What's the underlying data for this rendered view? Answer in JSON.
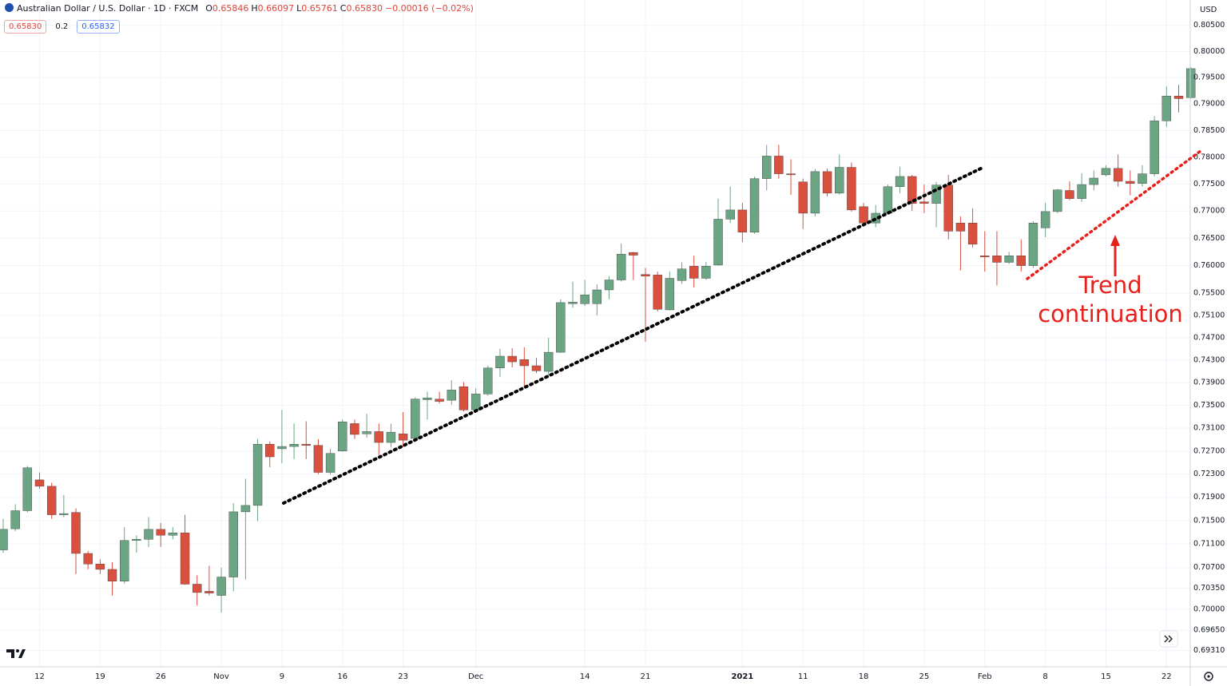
{
  "chart_data": {
    "type": "candlestick",
    "title": "Australian Dollar / U.S. Dollar · 1D · FXCM",
    "readout": [
      [
        "O",
        "0.65846"
      ],
      [
        "H",
        "0.66097"
      ],
      [
        "L",
        "0.65761"
      ],
      [
        "C",
        "0.65830"
      ],
      [
        "",
        "−0.00016 (−0.02%)"
      ]
    ],
    "quote_boxes": [
      "0.65830",
      "0.2",
      "0.65832"
    ],
    "currency": "USD",
    "annotation": [
      "Trend",
      "continuation"
    ],
    "log_scale": true,
    "grid": true,
    "up_color": "#6ba583",
    "down_color": "#d9503f",
    "ylim": [
      0.6904,
      0.8099
    ],
    "yticks": [
      {
        "value": 0.805,
        "label": "0.80500"
      },
      {
        "value": 0.8,
        "label": "0.80000"
      },
      {
        "value": 0.795,
        "label": "0.79500"
      },
      {
        "value": 0.79,
        "label": "0.79000"
      },
      {
        "value": 0.785,
        "label": "0.78500"
      },
      {
        "value": 0.78,
        "label": "0.78000"
      },
      {
        "value": 0.775,
        "label": "0.77500"
      },
      {
        "value": 0.77,
        "label": "0.77000"
      },
      {
        "value": 0.765,
        "label": "0.76500"
      },
      {
        "value": 0.76,
        "label": "0.76000"
      },
      {
        "value": 0.755,
        "label": "0.75500"
      },
      {
        "value": 0.751,
        "label": "0.75100"
      },
      {
        "value": 0.747,
        "label": "0.74700"
      },
      {
        "value": 0.743,
        "label": "0.74300"
      },
      {
        "value": 0.739,
        "label": "0.73900"
      },
      {
        "value": 0.735,
        "label": "0.73500"
      },
      {
        "value": 0.731,
        "label": "0.73100"
      },
      {
        "value": 0.727,
        "label": "0.72700"
      },
      {
        "value": 0.723,
        "label": "0.72300"
      },
      {
        "value": 0.719,
        "label": "0.71900"
      },
      {
        "value": 0.715,
        "label": "0.71500"
      },
      {
        "value": 0.711,
        "label": "0.71100"
      },
      {
        "value": 0.707,
        "label": "0.70700"
      },
      {
        "value": 0.7035,
        "label": "0.70350"
      },
      {
        "value": 0.7,
        "label": "0.70000"
      },
      {
        "value": 0.6965,
        "label": "0.69650"
      },
      {
        "value": 0.6931,
        "label": "0.69310"
      }
    ],
    "categories": [
      null,
      null,
      null,
      "12",
      null,
      null,
      null,
      null,
      "19",
      null,
      null,
      null,
      null,
      "26",
      null,
      null,
      null,
      null,
      "Nov",
      null,
      null,
      null,
      null,
      "9",
      null,
      null,
      null,
      null,
      "16",
      null,
      null,
      null,
      null,
      "23",
      null,
      null,
      null,
      null,
      null,
      "Dec",
      null,
      null,
      null,
      null,
      null,
      null,
      null,
      null,
      "14",
      null,
      null,
      null,
      null,
      "21",
      null,
      null,
      null,
      null,
      null,
      null,
      null,
      "2021",
      null,
      null,
      null,
      null,
      "11",
      null,
      null,
      null,
      null,
      "18",
      null,
      null,
      null,
      null,
      "25",
      null,
      null,
      null,
      null,
      "Feb",
      null,
      null,
      null,
      null,
      "8",
      null,
      null,
      null,
      null,
      "15",
      null,
      null,
      null,
      null,
      "22",
      null,
      null
    ],
    "open": [
      0.71,
      0.7136,
      0.7167,
      0.722,
      0.7209,
      0.716,
      0.7164,
      0.7094,
      0.7076,
      0.7067,
      0.7047,
      0.7116,
      0.7118,
      0.7135,
      0.7125,
      0.7129,
      0.7042,
      0.703,
      0.7023,
      0.7054,
      0.7165,
      0.7176,
      0.7282,
      0.7274,
      0.7278,
      0.7282,
      0.728,
      0.7233,
      0.727,
      0.7318,
      0.73,
      0.7304,
      0.7285,
      0.73,
      0.7292,
      0.736,
      0.7361,
      0.7359,
      0.7383,
      0.7342,
      0.737,
      0.7416,
      0.7437,
      0.7431,
      0.742,
      0.741,
      0.7444,
      0.7531,
      0.7531,
      0.7531,
      0.7556,
      0.7574,
      0.7624,
      0.7584,
      0.7583,
      0.752,
      0.7573,
      0.7599,
      0.7577,
      0.7601,
      0.7685,
      0.7702,
      0.7661,
      0.776,
      0.7802,
      0.7769,
      0.7754,
      0.7696,
      0.7773,
      0.7733,
      0.7781,
      0.7708,
      0.7678,
      0.7696,
      0.7745,
      0.7764,
      0.7717,
      0.7714,
      0.7748,
      0.7678,
      0.7678,
      0.7618,
      0.7618,
      0.7606,
      0.7618,
      0.76,
      0.7669,
      0.7699,
      0.7738,
      0.7723,
      0.7749,
      0.7767,
      0.7779,
      0.7755,
      0.7751,
      0.7769,
      0.7868,
      0.7915,
      0.7912
    ],
    "high": [
      0.7153,
      0.7178,
      0.7244,
      0.7233,
      0.7215,
      0.7194,
      0.7171,
      0.7098,
      0.7084,
      0.7079,
      0.7139,
      0.7125,
      0.7156,
      0.7146,
      0.7139,
      0.716,
      0.7057,
      0.7073,
      0.707,
      0.718,
      0.7222,
      0.7291,
      0.7287,
      0.7342,
      0.7318,
      0.7322,
      0.7291,
      0.7274,
      0.7325,
      0.7325,
      0.7335,
      0.7318,
      0.7318,
      0.7338,
      0.7364,
      0.7374,
      0.7374,
      0.7394,
      0.7391,
      0.738,
      0.742,
      0.745,
      0.7451,
      0.7453,
      0.7434,
      0.747,
      0.7539,
      0.7571,
      0.7574,
      0.7566,
      0.7581,
      0.764,
      0.7625,
      0.7596,
      0.7589,
      0.7589,
      0.7606,
      0.7618,
      0.7607,
      0.7723,
      0.7745,
      0.7715,
      0.7764,
      0.7823,
      0.7823,
      0.7796,
      0.776,
      0.7778,
      0.7779,
      0.7805,
      0.779,
      0.7715,
      0.7711,
      0.7749,
      0.7782,
      0.7767,
      0.7749,
      0.7754,
      0.7767,
      0.769,
      0.7705,
      0.7663,
      0.7663,
      0.7625,
      0.7648,
      0.7681,
      0.7715,
      0.7741,
      0.7755,
      0.777,
      0.7775,
      0.7785,
      0.7805,
      0.7775,
      0.7785,
      0.7877,
      0.7933,
      0.7936,
      0.797
    ],
    "low": [
      0.7095,
      0.7132,
      0.7164,
      0.7205,
      0.7153,
      0.7156,
      0.7059,
      0.7067,
      0.7059,
      0.7023,
      0.7043,
      0.7095,
      0.7105,
      0.7105,
      0.7118,
      0.7041,
      0.7006,
      0.7023,
      0.6994,
      0.703,
      0.705,
      0.7149,
      0.7242,
      0.7249,
      0.7256,
      0.7256,
      0.723,
      0.7229,
      0.7269,
      0.7291,
      0.7293,
      0.7263,
      0.7277,
      0.7277,
      0.7288,
      0.7325,
      0.7353,
      0.7351,
      0.7339,
      0.7339,
      0.7367,
      0.74,
      0.7417,
      0.7381,
      0.7407,
      0.7403,
      0.7443,
      0.7524,
      0.7527,
      0.751,
      0.7539,
      0.7571,
      0.7574,
      0.7463,
      0.7517,
      0.7519,
      0.7567,
      0.756,
      0.7574,
      0.76,
      0.7678,
      0.7643,
      0.7658,
      0.7738,
      0.776,
      0.773,
      0.7667,
      0.769,
      0.7727,
      0.773,
      0.7699,
      0.7673,
      0.767,
      0.7693,
      0.7733,
      0.77,
      0.7696,
      0.767,
      0.7648,
      0.7591,
      0.7633,
      0.7589,
      0.7564,
      0.7603,
      0.7589,
      0.7596,
      0.7652,
      0.7696,
      0.772,
      0.7717,
      0.7738,
      0.7764,
      0.7745,
      0.7729,
      0.7745,
      0.7764,
      0.7857,
      0.7884,
      0.791
    ],
    "close": [
      0.7135,
      0.7167,
      0.7241,
      0.7209,
      0.716,
      0.7162,
      0.7094,
      0.7076,
      0.7067,
      0.7047,
      0.7116,
      0.7118,
      0.7135,
      0.7125,
      0.7129,
      0.7042,
      0.7028,
      0.7027,
      0.7054,
      0.7165,
      0.7176,
      0.7282,
      0.726,
      0.7278,
      0.7282,
      0.728,
      0.7233,
      0.7266,
      0.7321,
      0.7299,
      0.7304,
      0.7285,
      0.7303,
      0.7289,
      0.7361,
      0.7363,
      0.7357,
      0.7377,
      0.7342,
      0.737,
      0.7416,
      0.7437,
      0.7427,
      0.742,
      0.7411,
      0.7444,
      0.7533,
      0.7534,
      0.7547,
      0.7556,
      0.7574,
      0.7621,
      0.7619,
      0.7581,
      0.7521,
      0.7577,
      0.7594,
      0.7577,
      0.7599,
      0.7685,
      0.7702,
      0.7661,
      0.776,
      0.7802,
      0.7769,
      0.7767,
      0.7696,
      0.7773,
      0.7733,
      0.7781,
      0.7702,
      0.7678,
      0.7696,
      0.7745,
      0.7764,
      0.7714,
      0.7714,
      0.7748,
      0.7663,
      0.7663,
      0.7639,
      0.7616,
      0.7606,
      0.7618,
      0.76,
      0.7678,
      0.7699,
      0.7739,
      0.7723,
      0.7749,
      0.7761,
      0.7779,
      0.7755,
      0.7751,
      0.7769,
      0.7868,
      0.7915,
      0.791,
      0.7967
    ]
  }
}
